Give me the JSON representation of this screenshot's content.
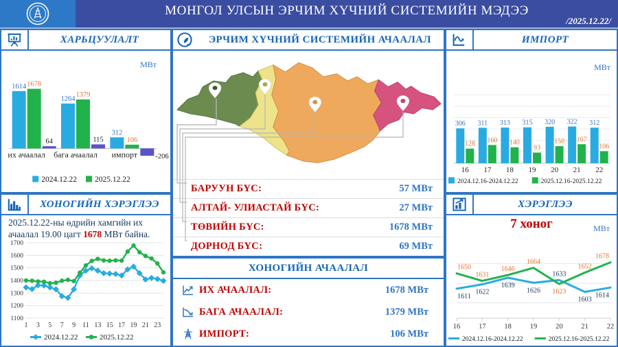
{
  "header": {
    "title": "МОНГОЛ УЛСЫН ЭРЧИМ ХҮЧНИЙ СИСТЕМИЙН МЭДЭЭ",
    "date": "/2025.12.22/"
  },
  "colors": {
    "header_bg": "#3A4DA1",
    "logo_bg": "#2E79C7",
    "accent_blue": "#2E75C4",
    "title_blue": "#1565B8",
    "red": "#C00000",
    "bar_blue": "#29ABE2",
    "bar_green": "#22B24C",
    "bar_purple": "#5B54C9",
    "label_orange": "#E0762F",
    "label_navy": "#17375E",
    "map_west": "#6C8C4F",
    "map_altai": "#EDE38B",
    "map_central": "#EFA95D",
    "map_east": "#D6537F"
  },
  "panels": {
    "comparison": {
      "title": "ХАРЬЦУУЛАЛТ"
    },
    "daily_consumption": {
      "title": "ХОНОГИЙН ХЭРЭГЛЭЭ",
      "note_1": "2025.12.22-ны өдрийн хамгийн их ачаалал 19.00 цагт ",
      "note_peak": "1678",
      "note_2": " МВт байна."
    },
    "system_load": {
      "title": "ЭРЧИМ ХҮЧНИЙ СИСТЕМИЙН АЧААЛАЛ",
      "regions": [
        {
          "label": "БАРУУН БҮС:",
          "value": "57 МВт",
          "color": "#6C8C4F"
        },
        {
          "label": "АЛТАЙ- УЛИАСТАЙ БҮС:",
          "value": "27 МВт",
          "color": "#EDE38B"
        },
        {
          "label": "ТӨВИЙН БҮС:",
          "value": "1678 МВт",
          "color": "#EFA95D"
        },
        {
          "label": "ДОРНОД БҮС:",
          "value": "69 МВт",
          "color": "#D6537F"
        }
      ]
    },
    "daily_load": {
      "title": "ХОНОГИЙН АЧААЛАЛ",
      "rows": [
        {
          "icon": "chart-up-icon",
          "label": "ИХ АЧААЛАЛ:",
          "value": "1678 МВт"
        },
        {
          "icon": "chart-down-icon",
          "label": "БАГА АЧААЛАЛ:",
          "value": "1379 МВт"
        },
        {
          "icon": "tower-icon",
          "label": "ИМПОРТ:",
          "value": "106 МВт"
        }
      ]
    },
    "import": {
      "title": "ИМПОРТ"
    },
    "consumption": {
      "title": "ХЭРЭГЛЭЭ",
      "subtitle": "7 хоног",
      "unit": "МВт"
    }
  },
  "chart_data": [
    {
      "id": "comparison",
      "type": "bar",
      "title": "ХАРЬЦУУЛАЛТ",
      "unit": "МВт",
      "categories": [
        "их ачаалал",
        "бага ачаалал",
        "импорт"
      ],
      "series": [
        {
          "name": "2024.12.22",
          "color": "#29ABE2",
          "label_color": "#2E75C4",
          "values": [
            1614,
            1264,
            312
          ]
        },
        {
          "name": "2025.12.22",
          "color": "#22B24C",
          "label_color": "#E0762F",
          "values": [
            1678,
            1379,
            106
          ]
        },
        {
          "name": "",
          "color": "#5B54C9",
          "label_color": "#1a1a1a",
          "values": [
            64,
            115,
            -206
          ]
        }
      ],
      "legend": [
        {
          "label": "2024.12.22",
          "color": "#29ABE2"
        },
        {
          "label": "2025.12.22",
          "color": "#22B24C"
        }
      ],
      "ylim": [
        -300,
        1900
      ],
      "grid": false,
      "legend_position": "bottom"
    },
    {
      "id": "hourly",
      "type": "line",
      "title": "ХОНОГИЙН ХЭРЭГЛЭЭ",
      "x": [
        1,
        2,
        3,
        4,
        5,
        6,
        7,
        8,
        9,
        10,
        11,
        12,
        13,
        14,
        15,
        16,
        17,
        18,
        19,
        20,
        21,
        22,
        23,
        24
      ],
      "x_ticks": [
        1,
        3,
        5,
        7,
        9,
        11,
        13,
        15,
        17,
        19,
        21,
        23
      ],
      "series": [
        {
          "name": "2024.12.22",
          "color": "#29ABE2",
          "marker": "diamond",
          "values": [
            1345,
            1332,
            1362,
            1360,
            1345,
            1330,
            1275,
            1262,
            1330,
            1440,
            1478,
            1497,
            1478,
            1458,
            1455,
            1452,
            1440,
            1488,
            1510,
            1458,
            1408,
            1420,
            1412,
            1397
          ]
        },
        {
          "name": "2025.12.22",
          "color": "#22B24C",
          "marker": "circle",
          "values": [
            1400,
            1398,
            1392,
            1390,
            1378,
            1382,
            1398,
            1405,
            1395,
            1462,
            1520,
            1556,
            1572,
            1560,
            1557,
            1560,
            1558,
            1630,
            1678,
            1625,
            1595,
            1575,
            1535,
            1465
          ]
        }
      ],
      "legend": [
        {
          "label": "2024.12.22",
          "color": "#29ABE2",
          "marker": "diamond"
        },
        {
          "label": "2025.12.22",
          "color": "#22B24C",
          "marker": "circle"
        }
      ],
      "ylim": [
        1100,
        1700
      ],
      "y_ticks": [
        1100,
        1200,
        1300,
        1400,
        1500,
        1600,
        1700
      ],
      "grid": true,
      "legend_position": "bottom"
    },
    {
      "id": "import",
      "type": "bar",
      "title": "ИМПОРТ",
      "unit": "МВт",
      "categories": [
        "16",
        "17",
        "18",
        "19",
        "20",
        "21",
        "22"
      ],
      "series": [
        {
          "name": "2024.12.16-2024.12.22",
          "color": "#29ABE2",
          "label_color": "#2E75C4",
          "values": [
            306,
            311,
            313,
            315,
            320,
            322,
            312
          ]
        },
        {
          "name": "2025.12.16-2025.12.22",
          "color": "#22B24C",
          "label_color": "#E0762F",
          "values": [
            128,
            160,
            140,
            93,
            150,
            167,
            106
          ]
        }
      ],
      "legend": [
        {
          "label": "2024.12.16-2024.12.22",
          "color": "#29ABE2"
        },
        {
          "label": "2025.12.16-2025.12.22",
          "color": "#22B24C"
        }
      ],
      "ylim": [
        0,
        650
      ],
      "grid": true,
      "legend_position": "bottom"
    },
    {
      "id": "weekly",
      "type": "line",
      "title": "ХЭРЭГЛЭЭ",
      "subtitle": "7 хоног",
      "unit": "МВт",
      "x": [
        16,
        17,
        18,
        19,
        20,
        21,
        22
      ],
      "series": [
        {
          "name": "2024.12.16-2024.12.22",
          "color": "#29ABE2",
          "label_color": "#17375E",
          "values": [
            1611,
            1622,
            1639,
            1626,
            1633,
            1603,
            1614
          ]
        },
        {
          "name": "2025.12.16-2025.12.22",
          "color": "#22B24C",
          "label_color": "#E0762F",
          "values": [
            1650,
            1631,
            1646,
            1664,
            1623,
            1652,
            1678
          ]
        }
      ],
      "legend": [
        {
          "label": "2024.12.16-2024.12.22",
          "color": "#29ABE2"
        },
        {
          "label": "2025.12.16-2025.12.22",
          "color": "#22B24C"
        }
      ],
      "ylim": [
        1550,
        1700
      ],
      "point_labels": true,
      "grid": true,
      "legend_position": "bottom"
    }
  ]
}
